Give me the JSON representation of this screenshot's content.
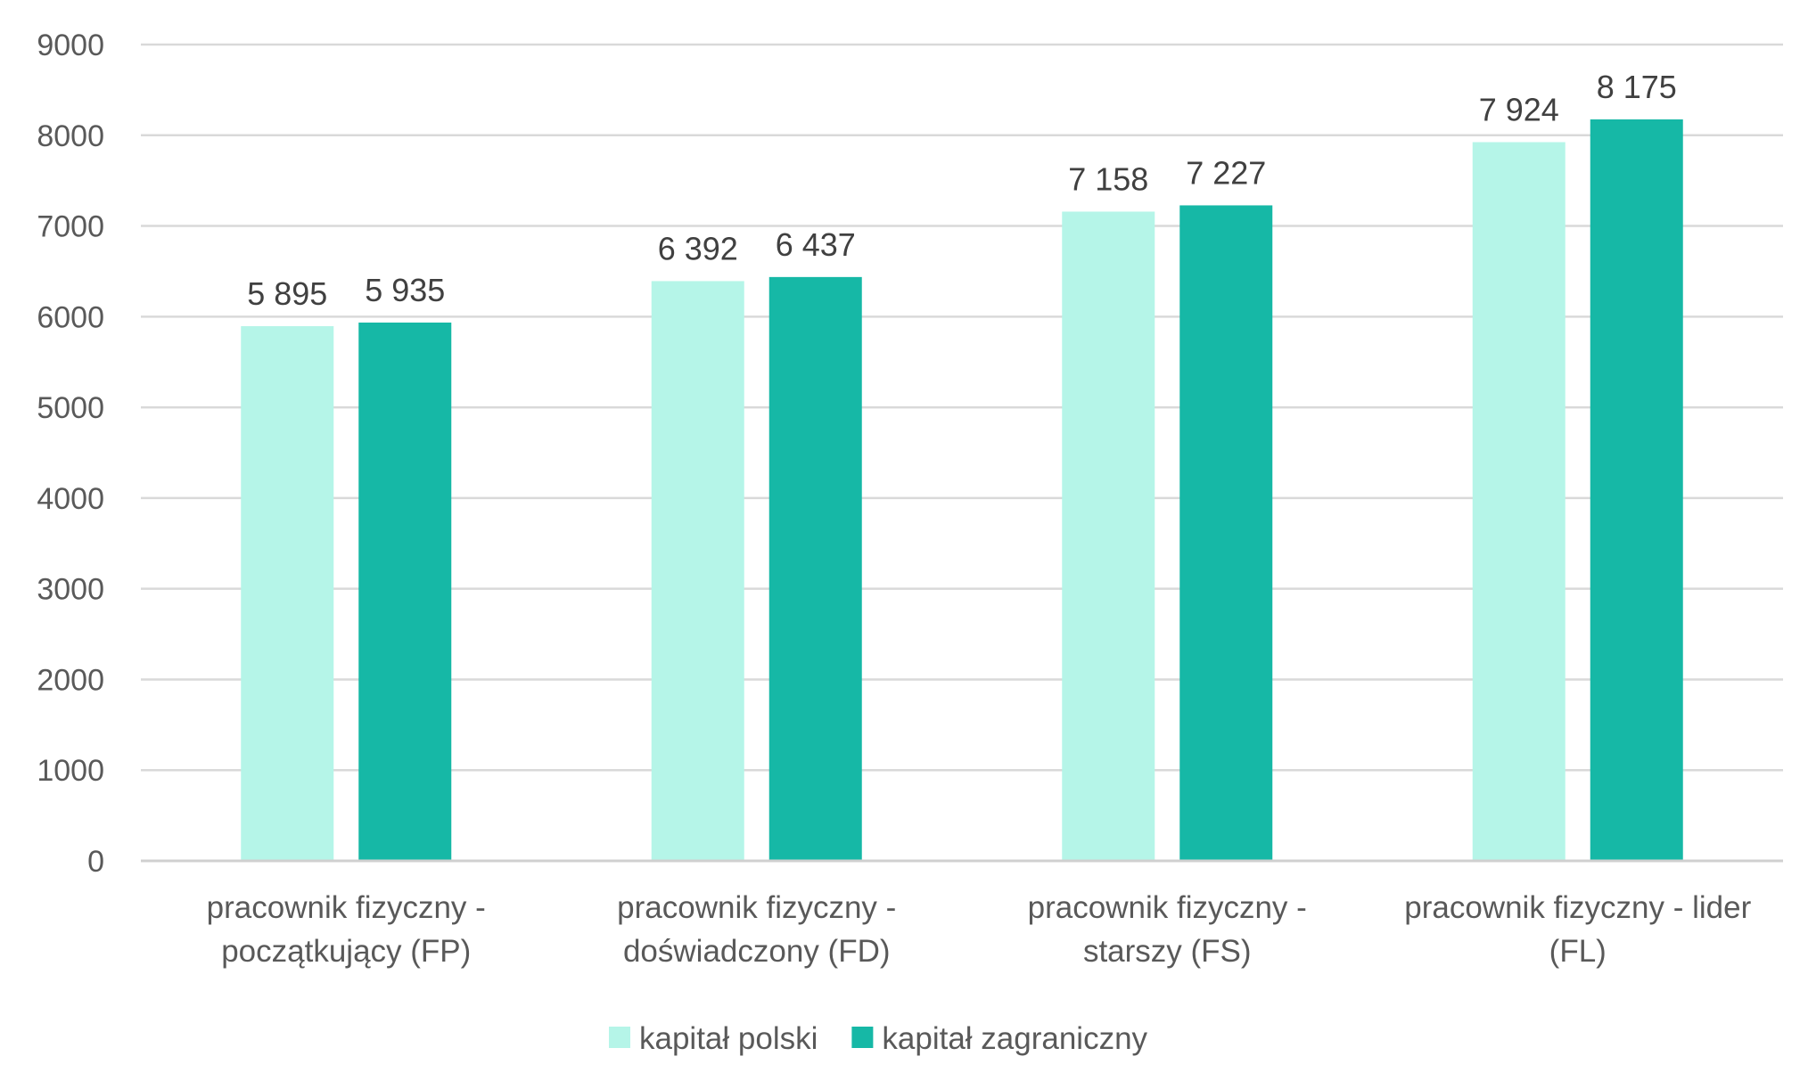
{
  "chart_data": {
    "type": "bar",
    "title": "",
    "xlabel": "",
    "ylabel": "",
    "ylim": [
      0,
      9000
    ],
    "y_ticks": [
      "0",
      "1000",
      "2000",
      "3000",
      "4000",
      "5000",
      "6000",
      "7000",
      "8000",
      "9000"
    ],
    "grid": true,
    "legend_position": "bottom",
    "categories": [
      [
        "pracownik fizyczny -",
        "początkujący (FP)"
      ],
      [
        "pracownik fizyczny -",
        "doświadczony (FD)"
      ],
      [
        "pracownik fizyczny -",
        "starszy (FS)"
      ],
      [
        "pracownik fizyczny - lider",
        "(FL)"
      ]
    ],
    "series": [
      {
        "name": "kapitał polski",
        "color": "#b5f5e8",
        "values": [
          5895,
          6392,
          7158,
          7924
        ],
        "labels": [
          "5 895",
          "6 392",
          "7 158",
          "7 924"
        ]
      },
      {
        "name": "kapitał zagraniczny",
        "color": "#16b8a6",
        "values": [
          5935,
          6437,
          7227,
          8175
        ],
        "labels": [
          "5 935",
          "6 437",
          "7 227",
          "8 175"
        ]
      }
    ]
  }
}
